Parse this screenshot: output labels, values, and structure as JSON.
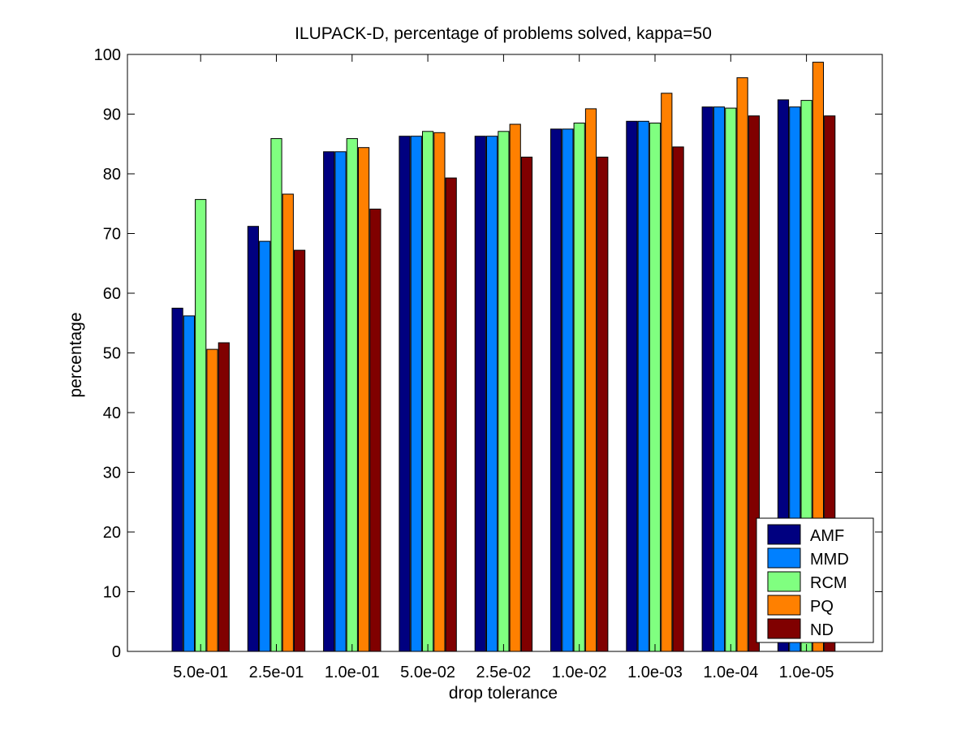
{
  "chart_data": {
    "type": "bar",
    "title": "ILUPACK-D, percentage of problems solved, kappa=50",
    "xlabel": "drop tolerance",
    "ylabel": "percentage",
    "categories": [
      "5.0e-01",
      "2.5e-01",
      "1.0e-01",
      "5.0e-02",
      "2.5e-02",
      "1.0e-02",
      "1.0e-03",
      "1.0e-04",
      "1.0e-05"
    ],
    "ylim": [
      0,
      100
    ],
    "yticks": [
      0,
      10,
      20,
      30,
      40,
      50,
      60,
      70,
      80,
      90,
      100
    ],
    "series": [
      {
        "name": "AMF",
        "color": "#000080",
        "values": [
          57.5,
          71.2,
          83.7,
          86.3,
          86.3,
          87.5,
          88.8,
          91.2,
          92.4
        ]
      },
      {
        "name": "MMD",
        "color": "#0080ff",
        "values": [
          56.2,
          68.7,
          83.7,
          86.3,
          86.3,
          87.5,
          88.8,
          91.2,
          91.2
        ]
      },
      {
        "name": "RCM",
        "color": "#80ff80",
        "values": [
          75.7,
          85.9,
          85.9,
          87.1,
          87.1,
          88.5,
          88.5,
          91.0,
          92.3
        ]
      },
      {
        "name": "PQ",
        "color": "#ff8000",
        "values": [
          50.6,
          76.6,
          84.4,
          86.9,
          88.3,
          90.9,
          93.5,
          96.1,
          98.7
        ]
      },
      {
        "name": "ND",
        "color": "#800000",
        "values": [
          51.7,
          67.2,
          74.1,
          79.3,
          82.8,
          82.8,
          84.5,
          89.7,
          89.7
        ]
      }
    ],
    "grid": false,
    "legend_position": "bottom-right"
  }
}
